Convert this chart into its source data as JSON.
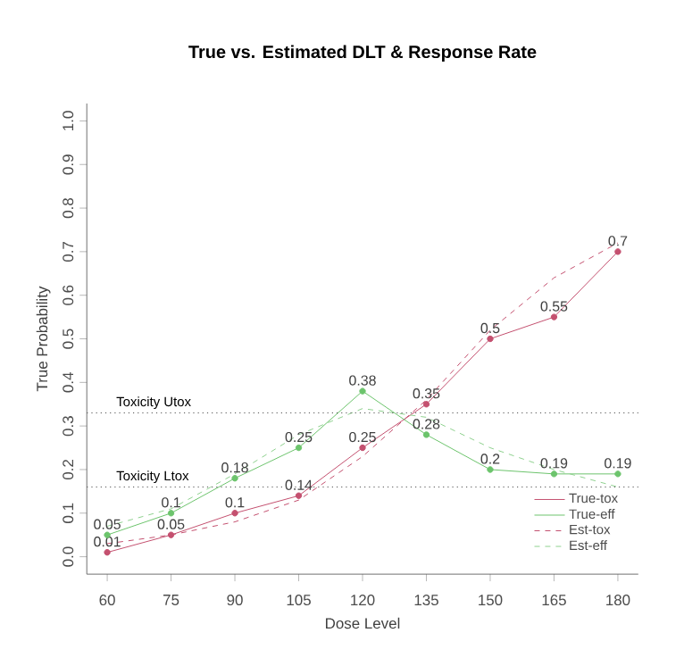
{
  "chart_data": {
    "type": "line",
    "title": "True vs. Estimated DLT & Response Rate",
    "xlabel": "Dose Level",
    "ylabel": "True Probability",
    "x": [
      60,
      75,
      90,
      105,
      120,
      135,
      150,
      165,
      180
    ],
    "series": [
      {
        "name": "True-tox",
        "color": "#c4506f",
        "marker": "circle",
        "line_style": "solid",
        "data_labels": true,
        "values": [
          0.01,
          0.05,
          0.1,
          0.14,
          0.25,
          0.35,
          0.5,
          0.55,
          0.7
        ]
      },
      {
        "name": "True-eff",
        "color": "#6cc46c",
        "marker": "circle",
        "line_style": "solid",
        "data_labels": true,
        "values": [
          0.05,
          0.1,
          0.18,
          0.25,
          0.38,
          0.28,
          0.2,
          0.19,
          0.19
        ]
      },
      {
        "name": "Est-tox",
        "color": "#c4506f",
        "marker": "none",
        "line_style": "dashed",
        "values": [
          0.03,
          0.05,
          0.08,
          0.13,
          0.23,
          0.36,
          0.52,
          0.64,
          0.72
        ]
      },
      {
        "name": "Est-eff",
        "color": "#8fd18f",
        "marker": "none",
        "line_style": "dashed",
        "values": [
          0.07,
          0.11,
          0.19,
          0.28,
          0.34,
          0.32,
          0.25,
          0.2,
          0.16
        ]
      }
    ],
    "xlim": [
      55.2,
      184.8
    ],
    "ylim": [
      -0.04,
      1.04
    ],
    "xticks": [
      60,
      75,
      90,
      105,
      120,
      135,
      150,
      165,
      180
    ],
    "yticks": [
      {
        "value": 0,
        "label": "0.0"
      },
      0.1,
      0.2,
      0.3,
      0.4,
      0.5,
      0.6,
      0.7,
      0.8,
      0.9,
      {
        "value": 1,
        "label": "1.0"
      }
    ],
    "ref_lines": [
      {
        "axis": "y",
        "value": 0.33,
        "label": "Toxicity Utox",
        "color": "#555555",
        "line_style": "dotted"
      },
      {
        "axis": "y",
        "value": 0.16,
        "label": "Toxicity Ltox",
        "color": "#555555",
        "line_style": "dotted"
      }
    ],
    "grid": false,
    "legend": "bottom right"
  }
}
